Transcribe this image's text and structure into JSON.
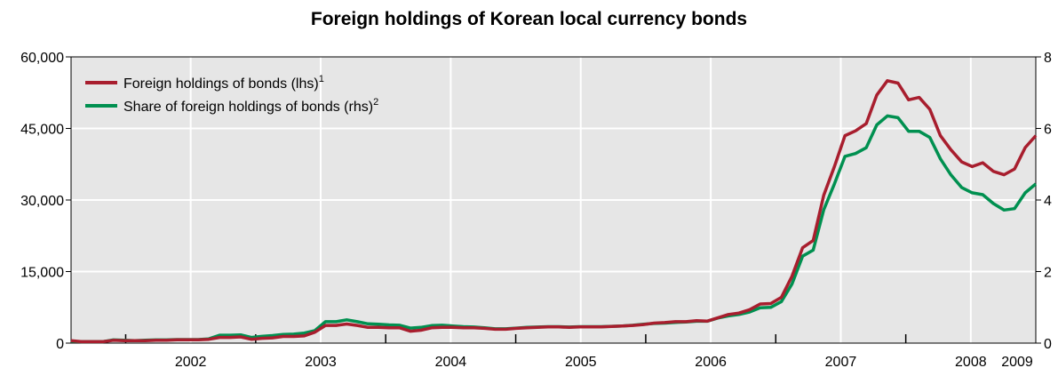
{
  "chart_data": {
    "type": "line",
    "title": "Foreign holdings of Korean local currency bonds",
    "xlabel": "",
    "ylabel": "",
    "x_tick_labels": [
      "2002",
      "2003",
      "2004",
      "2005",
      "2006",
      "2007",
      "2008",
      "2009"
    ],
    "x_range": [
      2001.58,
      2009.0
    ],
    "left_axis": {
      "ticks": [
        "0",
        "15,000",
        "30,000",
        "45,000",
        "60,000"
      ],
      "range": [
        0,
        60000
      ]
    },
    "right_axis": {
      "ticks": [
        "0",
        "2",
        "4",
        "6",
        "8"
      ],
      "range": [
        0,
        8
      ]
    },
    "grid": true,
    "legend_position": "top-left",
    "series": [
      {
        "name": "Foreign holdings of bonds (lhs)",
        "footnote": "1",
        "axis": "left",
        "color": "#a81e2e",
        "values": [
          500,
          300,
          300,
          300,
          600,
          500,
          500,
          500,
          600,
          600,
          700,
          700,
          700,
          800,
          1200,
          1200,
          1300,
          800,
          1000,
          1100,
          1400,
          1400,
          1500,
          2300,
          3700,
          3700,
          4000,
          3700,
          3300,
          3300,
          3200,
          3200,
          2500,
          2700,
          3200,
          3300,
          3300,
          3200,
          3200,
          3100,
          2900,
          2900,
          3100,
          3200,
          3300,
          3400,
          3400,
          3300,
          3400,
          3400,
          3400,
          3500,
          3600,
          3700,
          3900,
          4200,
          4300,
          4500,
          4500,
          4700,
          4600,
          5300,
          6000,
          6300,
          7000,
          8200,
          8300,
          9600,
          14000,
          20000,
          21500,
          31000,
          37000,
          43500,
          44500,
          46000,
          52000,
          55000,
          54500,
          51000,
          51500,
          49000,
          43500,
          40500,
          38000,
          37000,
          37800,
          36000,
          35300,
          36500,
          41000,
          43500
        ]
      },
      {
        "name": "Share of foreign holdings of bonds (rhs)",
        "footnote": "2",
        "axis": "right",
        "color": "#009050",
        "values": [
          0.05,
          0.04,
          0.04,
          0.04,
          0.09,
          0.08,
          0.07,
          0.08,
          0.09,
          0.09,
          0.1,
          0.1,
          0.1,
          0.12,
          0.22,
          0.22,
          0.23,
          0.16,
          0.19,
          0.21,
          0.24,
          0.25,
          0.28,
          0.35,
          0.6,
          0.6,
          0.65,
          0.6,
          0.54,
          0.53,
          0.51,
          0.5,
          0.42,
          0.44,
          0.49,
          0.5,
          0.48,
          0.46,
          0.45,
          0.43,
          0.4,
          0.4,
          0.42,
          0.44,
          0.45,
          0.46,
          0.46,
          0.45,
          0.46,
          0.46,
          0.46,
          0.47,
          0.48,
          0.5,
          0.53,
          0.55,
          0.56,
          0.58,
          0.59,
          0.61,
          0.61,
          0.7,
          0.76,
          0.8,
          0.87,
          0.99,
          1.0,
          1.16,
          1.65,
          2.43,
          2.6,
          3.73,
          4.45,
          5.22,
          5.3,
          5.46,
          6.1,
          6.35,
          6.3,
          5.92,
          5.92,
          5.75,
          5.15,
          4.7,
          4.35,
          4.2,
          4.15,
          3.9,
          3.72,
          3.76,
          4.2,
          4.45
        ]
      }
    ]
  }
}
